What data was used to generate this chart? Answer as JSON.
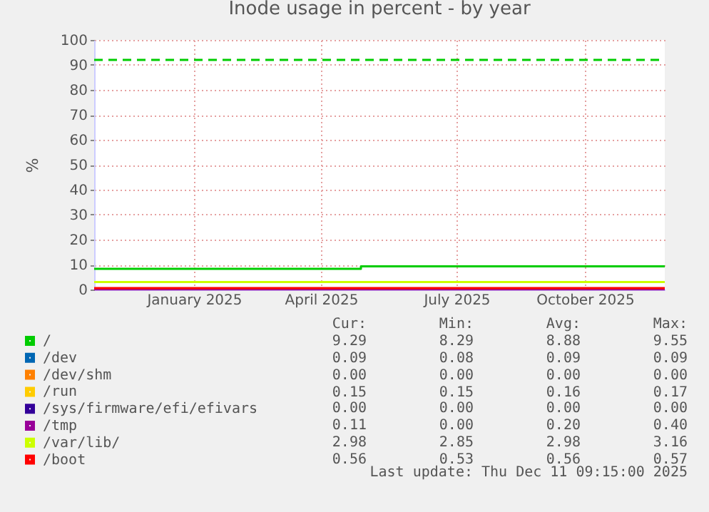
{
  "chart_data": {
    "type": "line",
    "title": "Inode usage in percent - by year",
    "ylabel": "%",
    "x": [
      "2024-11-06",
      "2025-05-12",
      "2025-12-11"
    ],
    "xlim": [
      "2024-11-06",
      "2025-12-11"
    ],
    "xticks": [
      {
        "value": "2025-01-15",
        "label": "January 2025"
      },
      {
        "value": "2025-04-14",
        "label": "April 2025"
      },
      {
        "value": "2025-07-18",
        "label": "July 2025"
      },
      {
        "value": "2025-10-16",
        "label": "October 2025"
      }
    ],
    "ylim": [
      0,
      100
    ],
    "yticks": [
      0,
      10,
      20,
      30,
      40,
      50,
      60,
      70,
      80,
      90,
      100
    ],
    "grid": true,
    "legend": "bottom",
    "series": [
      {
        "name": "/",
        "type": "step",
        "color": "#00cc00",
        "values": [
          8.3,
          9.3,
          9.3
        ]
      },
      {
        "name": "/dev",
        "color": "#0066b3",
        "values": [
          null,
          null,
          null
        ]
      },
      {
        "name": "/dev/shm",
        "color": "#ff8000",
        "values": [
          null,
          null,
          null
        ]
      },
      {
        "name": "/run",
        "color": "#ffcc00",
        "values": [
          null,
          null,
          null
        ]
      },
      {
        "name": "/sys/firmware/efi/efivars",
        "color": "#330099",
        "values": [
          null,
          null,
          null
        ]
      },
      {
        "name": "/tmp",
        "color": "#990099",
        "values": [
          0.1,
          0.1,
          0.1
        ]
      },
      {
        "name": "/var/lib/",
        "color": "#ccff00",
        "values": [
          3,
          3,
          3
        ]
      },
      {
        "name": "/boot",
        "color": "#ff0000",
        "values": [
          0.6,
          0.6,
          0.6
        ]
      }
    ],
    "ref_lines": [
      {
        "axis": "y",
        "value": 92,
        "color": "#00cc00",
        "line_style": "dashed"
      }
    ],
    "annotations": [
      "Cur: Min: Avg: Max:",
      "9.29 8.29 8.88 9.55",
      "0.09 0.08 0.09 0.09",
      "0.00 0.00 0.00 0.00",
      "0.15 0.15 0.16 0.17",
      "0.00 0.00 0.00 0.00",
      "0.11 0.00 0.20 0.40",
      "2.98 2.85 2.98 3.16",
      "0.56 0.53 0.56 0.57",
      "Last update: Thu Dec 11 09:15:00 2025"
    ]
  }
}
